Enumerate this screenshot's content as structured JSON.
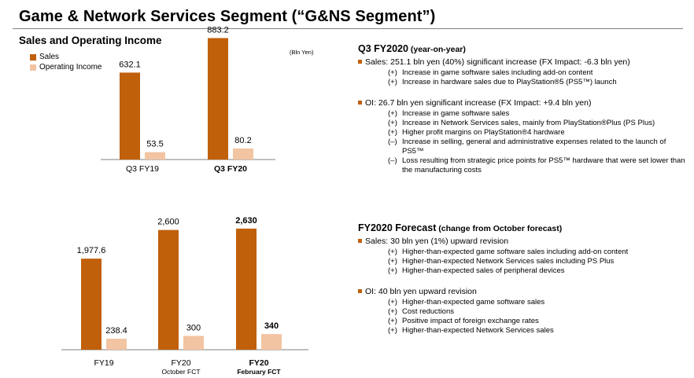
{
  "page": {
    "title": "Game & Network Services Segment (“G&NS Segment”)",
    "subtitle": "Sales and Operating Income",
    "unit": "(Bln Yen)"
  },
  "colors": {
    "sales": "#c0600a",
    "oi": "#f2c4a2"
  },
  "legend": {
    "sales": "Sales",
    "oi": "Operating Income"
  },
  "chart_data": [
    {
      "type": "bar",
      "title": "Sales and Operating Income",
      "categories": [
        "Q3 FY19",
        "Q3 FY20"
      ],
      "series": [
        {
          "name": "Sales",
          "values": [
            632.1,
            883.2
          ],
          "labels": [
            "632.1",
            "883.2"
          ]
        },
        {
          "name": "Operating Income",
          "values": [
            53.5,
            80.2
          ],
          "labels": [
            "53.5",
            "80.2"
          ]
        }
      ],
      "ylabel": "(Bln Yen)",
      "ylim": [
        0,
        1000
      ]
    },
    {
      "type": "bar",
      "categories": [
        "FY19",
        "FY20",
        "FY20"
      ],
      "category_sublabels": [
        "",
        "October FCT",
        "February FCT"
      ],
      "series": [
        {
          "name": "Sales",
          "values": [
            1977.6,
            2600,
            2630
          ],
          "labels": [
            "1,977.6",
            "2,600",
            "2,630"
          ]
        },
        {
          "name": "Operating Income",
          "values": [
            238.4,
            300,
            340
          ],
          "labels": [
            "238.4",
            "300",
            "340"
          ]
        }
      ],
      "ylim": [
        0,
        2850
      ]
    }
  ],
  "q3": {
    "heading": "Q3 FY2020",
    "heading_note": " (year-on-year)",
    "bullets": [
      {
        "text": "Sales: 251.1 bln yen (40%) significant increase (FX Impact: -6.3 bln yen)",
        "items": [
          {
            "tag": "(+)",
            "text": "Increase in game software sales including add-on content"
          },
          {
            "tag": "(+)",
            "text": "Increase in hardware sales due to PlayStation®5 (PS5™) launch"
          }
        ]
      },
      {
        "text": "OI: 26.7 bln yen significant increase (FX Impact: +9.4 bln yen)",
        "items": [
          {
            "tag": "(+)",
            "text": "Increase in game software sales"
          },
          {
            "tag": "(+)",
            "text": "Increase in Network Services sales, mainly from PlayStation®Plus (PS Plus)"
          },
          {
            "tag": "(+)",
            "text": "Higher profit margins on PlayStation®4 hardware"
          },
          {
            "tag": "(–)",
            "text": "Increase in selling, general and administrative expenses related to the launch of PS5™"
          },
          {
            "tag": "(–)",
            "text": "Loss resulting from strategic price points for PS5™ hardware that were set lower than the manufacturing costs"
          }
        ]
      }
    ]
  },
  "fy": {
    "heading": "FY2020 Forecast",
    "heading_note": " (change from October forecast)",
    "bullets": [
      {
        "text": "Sales: 30 bln yen (1%) upward revision",
        "items": [
          {
            "tag": "(+)",
            "text": "Higher-than-expected game software sales including add-on content"
          },
          {
            "tag": "(+)",
            "text": "Higher-than-expected Network Services sales including PS Plus"
          },
          {
            "tag": "(+)",
            "text": "Higher-than-expected sales of peripheral devices"
          }
        ]
      },
      {
        "text": "OI: 40 bln yen upward revision",
        "items": [
          {
            "tag": "(+)",
            "text": "Higher-than-expected game software sales"
          },
          {
            "tag": "(+)",
            "text": "Cost reductions"
          },
          {
            "tag": "(+)",
            "text": "Positive impact of foreign exchange rates"
          },
          {
            "tag": "(+)",
            "text": "Higher-than-expected Network Services sales"
          }
        ]
      }
    ]
  }
}
